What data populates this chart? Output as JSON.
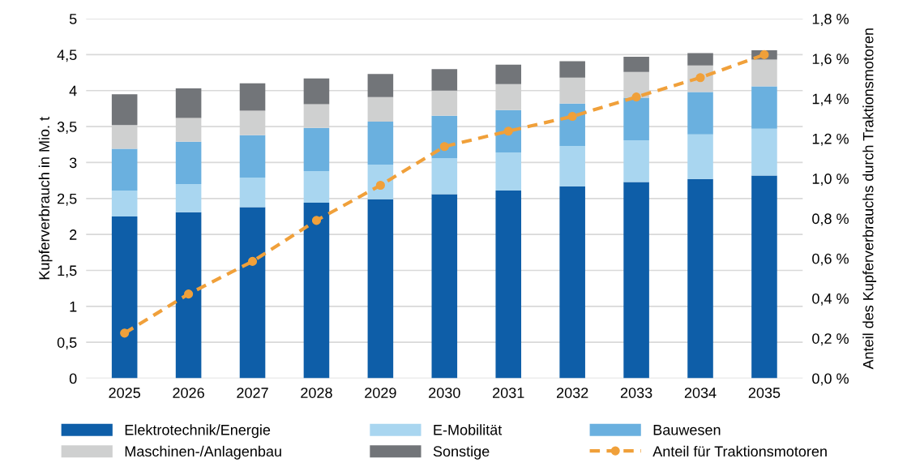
{
  "chart_data": {
    "type": "bar",
    "stacked": true,
    "ylabel": "Kupferverbrauch in Mio. t",
    "y2label": "Anteil des Kupferverbrauchs durch Traktionsmotoren",
    "categories": [
      "2025",
      "2026",
      "2027",
      "2028",
      "2029",
      "2030",
      "2031",
      "2032",
      "2033",
      "2034",
      "2035"
    ],
    "series": [
      {
        "name": "Elektrotechnik/Energie",
        "color": "#0e5ea8",
        "values": [
          2.25,
          2.31,
          2.38,
          2.44,
          2.49,
          2.56,
          2.61,
          2.67,
          2.73,
          2.77,
          2.82
        ]
      },
      {
        "name": "E-Mobilität",
        "color": "#a9d6f0",
        "values": [
          0.36,
          0.39,
          0.41,
          0.44,
          0.48,
          0.5,
          0.53,
          0.56,
          0.58,
          0.62,
          0.65
        ]
      },
      {
        "name": "Bauwesen",
        "color": "#6ab0df",
        "values": [
          0.58,
          0.59,
          0.59,
          0.6,
          0.6,
          0.59,
          0.59,
          0.59,
          0.59,
          0.59,
          0.59
        ]
      },
      {
        "name": "Maschinen-/Anlagenbau",
        "color": "#cfd0d0",
        "values": [
          0.33,
          0.33,
          0.34,
          0.33,
          0.34,
          0.35,
          0.36,
          0.36,
          0.36,
          0.37,
          0.37
        ]
      },
      {
        "name": "Sonstige",
        "color": "#727579",
        "values": [
          0.43,
          0.41,
          0.38,
          0.36,
          0.32,
          0.3,
          0.27,
          0.23,
          0.21,
          0.17,
          0.13
        ]
      },
      {
        "name": "Anteil für Traktionsmotoren",
        "type": "line",
        "axis": "y2",
        "color": "#f0a03a",
        "marker": "circle",
        "line_style": "dashed",
        "values": [
          0.226,
          0.422,
          0.585,
          0.79,
          0.966,
          1.16,
          1.237,
          1.311,
          1.408,
          1.505,
          1.62
        ]
      }
    ],
    "ylim": [
      0,
      5
    ],
    "yticks": [
      0,
      {
        "value": 0.5,
        "label": "0,5"
      },
      1,
      {
        "value": 1.5,
        "label": "1,5"
      },
      2,
      {
        "value": 2.5,
        "label": "2,5"
      },
      3,
      {
        "value": 3.5,
        "label": "3,5"
      },
      4,
      {
        "value": 4.5,
        "label": "4,5"
      },
      5
    ],
    "y2lim": [
      0,
      1.8
    ],
    "y2ticks": [
      {
        "value": 0,
        "label": "0,0 %"
      },
      {
        "value": 0.2,
        "label": "0,2 %"
      },
      {
        "value": 0.4,
        "label": "0,4 %"
      },
      {
        "value": 0.6,
        "label": "0,6 %"
      },
      {
        "value": 0.8,
        "label": "0,8 %"
      },
      {
        "value": 1.0,
        "label": "1,0 %"
      },
      {
        "value": 1.2,
        "label": "1,2 %"
      },
      {
        "value": 1.4,
        "label": "1,4 %"
      },
      {
        "value": 1.6,
        "label": "1,6 %"
      },
      {
        "value": 1.8,
        "label": "1,8 %"
      }
    ],
    "grid": "y",
    "legend": "bottom"
  }
}
